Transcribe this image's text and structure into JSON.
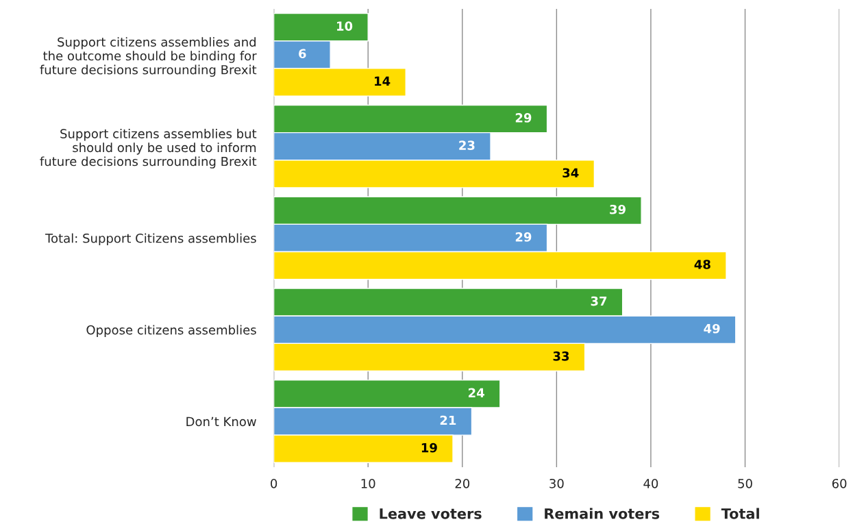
{
  "chart_data": {
    "type": "bar",
    "orientation": "horizontal",
    "categories": [
      "Support citizens assemblies and\nthe outcome should be binding for\nfuture decisions surrounding Brexit",
      "Support citizens assemblies but\nshould only be used to inform\nfuture decisions surrounding Brexit",
      "Total: Support Citizens assemblies",
      "Oppose citizens assemblies",
      "Don’t Know"
    ],
    "series": [
      {
        "name": "Leave voters",
        "color": "#3fa535",
        "values": [
          10,
          29,
          39,
          37,
          24
        ]
      },
      {
        "name": "Remain voters",
        "color": "#5b9bd5",
        "values": [
          6,
          23,
          29,
          49,
          21
        ]
      },
      {
        "name": "Total",
        "color": "#ffdd00",
        "values": [
          14,
          34,
          48,
          33,
          19
        ]
      }
    ],
    "xlim": [
      0,
      60
    ],
    "xticks": [
      0,
      10,
      20,
      30,
      40,
      50,
      60
    ],
    "grid": "x",
    "legend": "bottom",
    "data_labels": true
  }
}
